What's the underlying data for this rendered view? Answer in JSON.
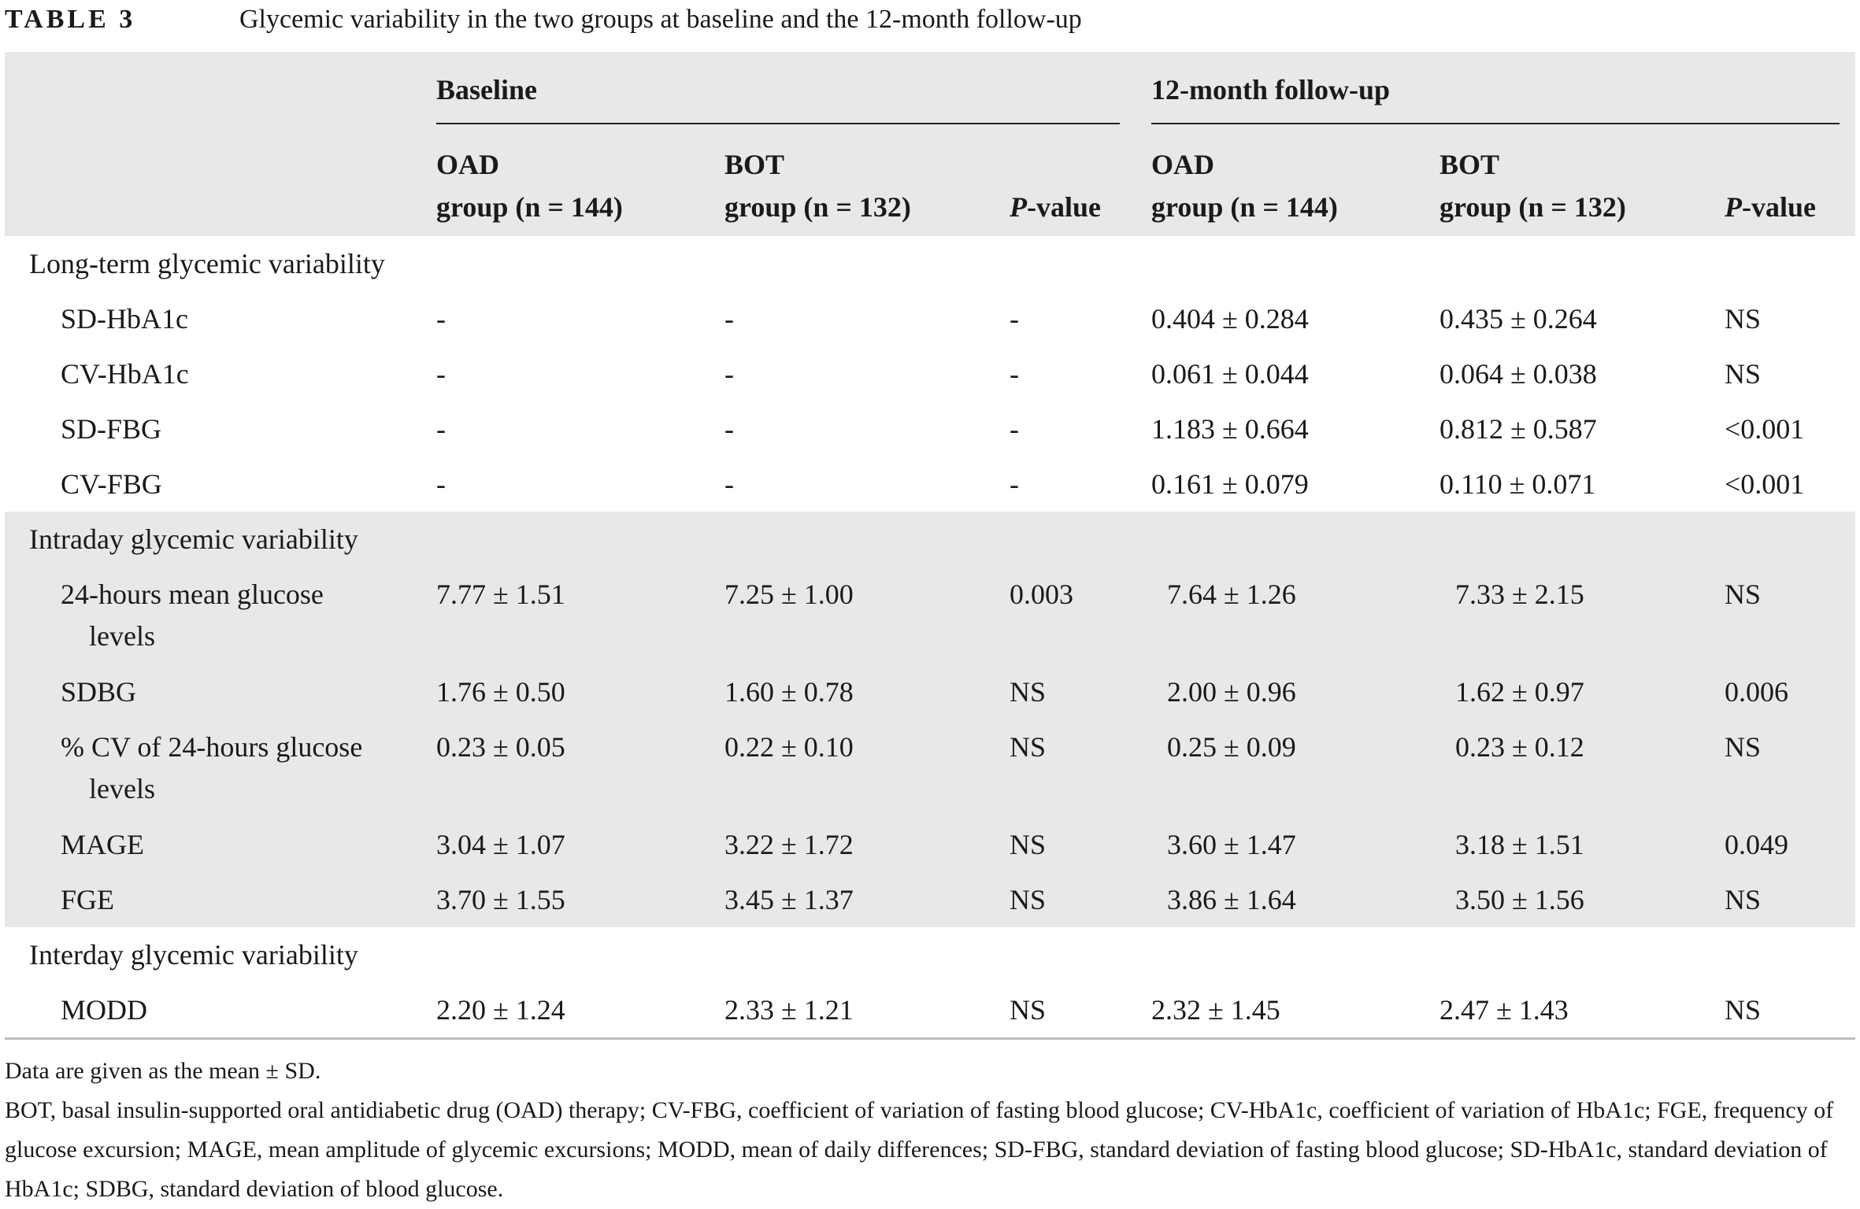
{
  "caption": {
    "label": "TABLE 3",
    "title": "Glycemic variability in the two groups at baseline and the 12-month follow-up"
  },
  "header": {
    "group_baseline": "Baseline",
    "group_followup": "12-month follow-up",
    "oad_line1": "OAD",
    "oad_line2": "group (n = 144)",
    "bot_line1": "BOT",
    "bot_line2": "group (n = 132)",
    "p_italic": "P",
    "p_rest": "-value"
  },
  "sections": [
    {
      "title": "Long-term glycemic variability",
      "shaded": false,
      "rows": [
        {
          "label": "SD-HbA1c",
          "b_oad": "-",
          "b_bot": "-",
          "b_p": "-",
          "f_oad": "0.404 ± 0.284",
          "f_bot": "0.435 ± 0.264",
          "f_p": "NS"
        },
        {
          "label": "CV-HbA1c",
          "b_oad": "-",
          "b_bot": "-",
          "b_p": "-",
          "f_oad": "0.061 ± 0.044",
          "f_bot": "0.064 ± 0.038",
          "f_p": "NS"
        },
        {
          "label": "SD-FBG",
          "b_oad": "-",
          "b_bot": "-",
          "b_p": "-",
          "f_oad": "1.183 ± 0.664",
          "f_bot": "0.812 ± 0.587",
          "f_p": "<0.001"
        },
        {
          "label": "CV-FBG",
          "b_oad": "-",
          "b_bot": "-",
          "b_p": "-",
          "f_oad": "0.161 ± 0.079",
          "f_bot": "0.110 ± 0.071",
          "f_p": "<0.001"
        }
      ]
    },
    {
      "title": "Intraday glycemic variability",
      "shaded": true,
      "rows": [
        {
          "label": "24-hours mean glucose",
          "label2": "levels",
          "b_oad": "7.77 ± 1.51",
          "b_bot": "7.25 ± 1.00",
          "b_p": "0.003",
          "f_oad": "7.64 ± 1.26",
          "f_bot": "7.33 ± 2.15",
          "f_p": "NS"
        },
        {
          "label": "SDBG",
          "b_oad": "1.76 ± 0.50",
          "b_bot": "1.60 ± 0.78",
          "b_p": "NS",
          "f_oad": "2.00 ± 0.96",
          "f_bot": "1.62 ± 0.97",
          "f_p": "0.006"
        },
        {
          "label": "% CV of 24-hours glucose",
          "label2": "levels",
          "b_oad": "0.23 ± 0.05",
          "b_bot": "0.22 ± 0.10",
          "b_p": "NS",
          "f_oad": "0.25 ± 0.09",
          "f_bot": "0.23 ± 0.12",
          "f_p": "NS"
        },
        {
          "label": "MAGE",
          "b_oad": "3.04 ± 1.07",
          "b_bot": "3.22 ± 1.72",
          "b_p": "NS",
          "f_oad": "3.60 ± 1.47",
          "f_bot": "3.18 ± 1.51",
          "f_p": "0.049"
        },
        {
          "label": "FGE",
          "b_oad": "3.70 ± 1.55",
          "b_bot": "3.45 ± 1.37",
          "b_p": "NS",
          "f_oad": "3.86 ± 1.64",
          "f_bot": "3.50 ± 1.56",
          "f_p": "NS"
        }
      ]
    },
    {
      "title": "Interday glycemic variability",
      "shaded": false,
      "rows": [
        {
          "label": "MODD",
          "b_oad": "2.20 ± 1.24",
          "b_bot": "2.33 ± 1.21",
          "b_p": "NS",
          "f_oad": "2.32 ± 1.45",
          "f_bot": "2.47 ± 1.43",
          "f_p": "NS"
        }
      ]
    }
  ],
  "footnotes": {
    "line1": "Data are given as the mean ± SD.",
    "line2": "BOT, basal insulin-supported oral antidiabetic drug (OAD) therapy; CV-FBG, coefficient of variation of fasting blood glucose; CV-HbA1c, coefficient of variation of HbA1c; FGE, frequency of glucose excursion; MAGE, mean amplitude of glycemic excursions; MODD, mean of daily differences; SD-FBG, standard deviation of fasting blood glucose; SD-HbA1c, standard deviation of HbA1c; SDBG, standard deviation of blood glucose."
  }
}
